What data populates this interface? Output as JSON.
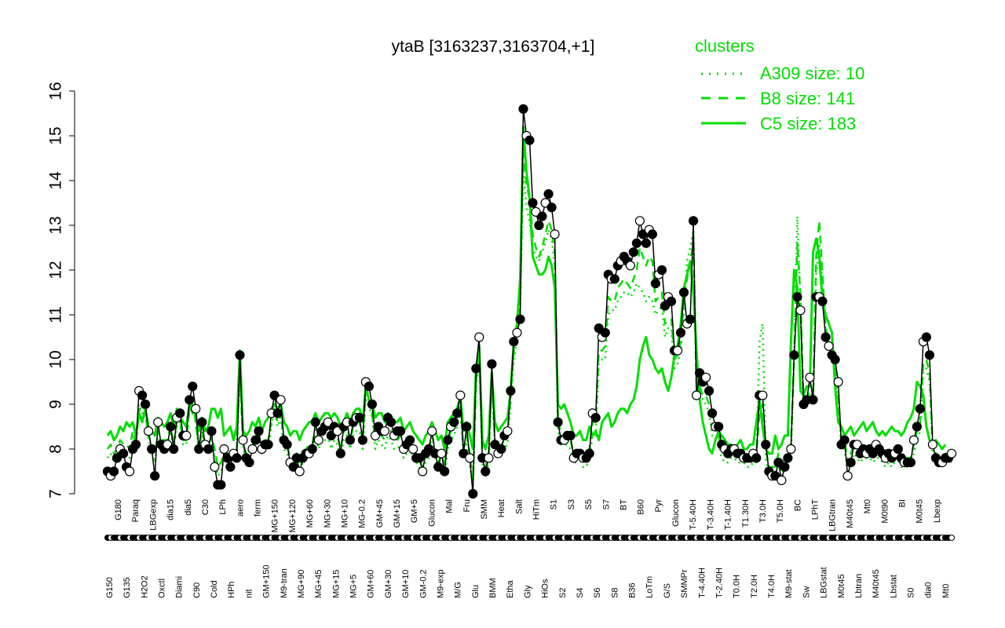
{
  "chart_data": {
    "type": "line",
    "title": "ytaB [3163237,3163704,+1]",
    "xlabel": "",
    "ylabel": "",
    "ylim": [
      7,
      16
    ],
    "yticks": [
      7,
      8,
      9,
      10,
      11,
      12,
      13,
      14,
      15,
      16
    ],
    "grid": false,
    "legend": {
      "title": "clusters",
      "placement": "top-right",
      "color": "#00dd00",
      "entries": [
        {
          "label": "A309 size: 10",
          "style": "dotted"
        },
        {
          "label": "B8 size: 141",
          "style": "dashed"
        },
        {
          "label": "C5 size: 183",
          "style": "solid"
        }
      ]
    },
    "x_tick_labels": [
      "G150",
      "G180",
      "G135",
      "Paraq",
      "H2O2",
      "LBGexp",
      "Oxctl",
      "dia15",
      "Diami",
      "dia5",
      "C90",
      "C30",
      "Cold",
      "LPh",
      "HPh",
      "aero",
      "nit",
      "ferm",
      "GM+150",
      "MG+150",
      "M9-tran",
      "MG+120",
      "MG+90",
      "MG+60",
      "MG+45",
      "MG+30",
      "MG+15",
      "MG+10",
      "MG+5",
      "MG-0.2",
      "GM+60",
      "GM+45",
      "GM+30",
      "GM+15",
      "GM+10",
      "GM+5",
      "GM-0.2",
      "Glucon",
      "M9-exp",
      "Mal",
      "M/G",
      "Fru",
      "Glu",
      "SMM",
      "BMM",
      "Heat",
      "Etha",
      "Salt",
      "Gly",
      "HiTm",
      "HiOs",
      "S1",
      "S2",
      "S3",
      "S4",
      "S5",
      "S6",
      "S7",
      "S8",
      "BT",
      "B36",
      "B60",
      "LoTm",
      "Pyr",
      "G/S",
      "Glucon",
      "SMMPr",
      "T-5.40H",
      "T-4.40H",
      "T-3.40H",
      "T-2.40H",
      "T-1.40H",
      "T0.0H",
      "T1.30H",
      "T2.0H",
      "T3.0H",
      "T4.0H",
      "T5.0H",
      "M9-stat",
      "BC",
      "Sw",
      "LPhT",
      "LBGstat",
      "LBGtran",
      "M0t45",
      "M40t45",
      "Lbtran",
      "Mt0",
      "M40t45",
      "M0t90",
      "Lbstat",
      "BI",
      "S0",
      "M0t45",
      "dia0",
      "Lbexp",
      "Mt0"
    ],
    "series": [
      {
        "name": "",
        "color": "#000000",
        "values": [
          7.5,
          7.4,
          7.5,
          7.8,
          8.0,
          7.9,
          7.6,
          7.5,
          8.0,
          8.1,
          9.3,
          9.2,
          9.0,
          8.4,
          8.0,
          7.4,
          8.6,
          8.1,
          8.0,
          8.1,
          8.5,
          8.0,
          8.7,
          8.8,
          8.3,
          8.3,
          9.1,
          9.4,
          8.9,
          8.0,
          8.6,
          8.1,
          8.0,
          8.4,
          7.6,
          7.2,
          7.2,
          8.0,
          7.8,
          7.6,
          7.9,
          7.8,
          10.1,
          8.2,
          7.8,
          7.7,
          8.0,
          8.2,
          8.4,
          8.0,
          8.1,
          8.1,
          8.8,
          9.2,
          8.8,
          9.1,
          8.2,
          8.1,
          7.7,
          7.6,
          7.8,
          7.5,
          7.8,
          7.9,
          7.9,
          8.0,
          8.6,
          8.2,
          8.4,
          8.5,
          8.6,
          8.3,
          8.5,
          8.4,
          7.9,
          8.5,
          8.6,
          8.2,
          8.6,
          8.7,
          8.7,
          8.2,
          9.5,
          9.4,
          9.0,
          8.3,
          8.5,
          8.4,
          8.4,
          8.7,
          8.6,
          8.3,
          8.4,
          8.4,
          8.0,
          8.1,
          8.2,
          8.0,
          7.8,
          7.8,
          7.5,
          7.9,
          8.0,
          8.4,
          7.9,
          7.6,
          7.9,
          7.5,
          8.2,
          8.5,
          8.6,
          8.8,
          9.2,
          7.9,
          8.5,
          7.8,
          7.0,
          9.8,
          10.5,
          7.8,
          7.5,
          7.8,
          9.9,
          8.1,
          7.9,
          8.0,
          8.3,
          8.4,
          9.3,
          10.4,
          10.6,
          10.9,
          15.6,
          15.0,
          14.9,
          13.5,
          13.3,
          13.0,
          13.2,
          13.5,
          13.7,
          13.4,
          12.8,
          8.6,
          8.2,
          8.2,
          8.3,
          8.3,
          7.8,
          7.9,
          7.9,
          7.8,
          7.8,
          7.9,
          8.8,
          8.7,
          10.7,
          10.5,
          10.6,
          11.9,
          11.8,
          11.8,
          12.1,
          12.2,
          12.3,
          12.2,
          12.1,
          12.4,
          12.6,
          13.1,
          12.8,
          12.6,
          12.9,
          12.8,
          11.7,
          11.9,
          12.0,
          11.2,
          11.4,
          11.3,
          10.2,
          10.2,
          10.6,
          11.5,
          10.8,
          10.9,
          13.1,
          9.2,
          9.7,
          9.5,
          9.6,
          9.3,
          8.8,
          8.5,
          8.5,
          8.1,
          8.0,
          7.9,
          8.0,
          8.0,
          7.9,
          7.9,
          7.8,
          7.8,
          7.8,
          7.9,
          7.8,
          9.2,
          9.2,
          8.1,
          7.5,
          7.4,
          7.4,
          7.7,
          7.3,
          7.6,
          7.8,
          8.0,
          10.1,
          11.4,
          11.1,
          9.0,
          9.1,
          9.6,
          9.1,
          11.4,
          11.4,
          11.3,
          10.5,
          10.3,
          10.1,
          10.0,
          9.5,
          8.1,
          8.2,
          7.4,
          7.7,
          8.1,
          8.1,
          7.9,
          8.0,
          7.9,
          8.0,
          7.9,
          8.1,
          8.0,
          7.9,
          7.8,
          7.9,
          7.8,
          7.9,
          8.0,
          7.8,
          7.7,
          7.7,
          7.7,
          8.2,
          8.5,
          8.9,
          10.4,
          10.5,
          10.1,
          8.1,
          7.8,
          7.7,
          7.7,
          7.8,
          7.8,
          7.9
        ]
      },
      {
        "name": "C5 size: 183",
        "color": "#00dd00",
        "values": [
          8.3,
          8.4,
          8.2,
          8.3,
          8.5,
          8.4,
          8.6,
          8.5,
          8.6,
          8.3,
          8.8,
          8.6,
          8.9,
          8.5,
          8.4,
          8.3,
          8.7,
          8.6,
          8.5,
          8.6,
          8.8,
          8.5,
          8.9,
          8.7,
          8.6,
          8.5,
          9.0,
          8.8,
          8.8,
          8.4,
          8.7,
          8.4,
          8.5,
          8.9,
          8.9,
          8.7,
          8.9,
          8.3,
          8.4,
          8.5,
          8.2,
          8.5,
          10.2,
          8.4,
          8.3,
          8.4,
          8.6,
          8.5,
          8.7,
          8.4,
          8.6,
          8.7,
          8.9,
          9.0,
          8.9,
          9.0,
          8.6,
          8.5,
          8.3,
          8.4,
          8.4,
          8.2,
          8.4,
          8.5,
          8.6,
          8.6,
          8.8,
          8.6,
          8.7,
          8.8,
          8.8,
          8.7,
          8.8,
          8.7,
          8.5,
          8.6,
          8.8,
          8.6,
          8.8,
          8.9,
          8.9,
          8.6,
          9.4,
          9.1,
          9.0,
          8.7,
          8.8,
          8.8,
          8.6,
          8.8,
          8.7,
          8.6,
          8.6,
          8.7,
          8.4,
          8.5,
          8.6,
          8.4,
          8.3,
          8.2,
          8.1,
          8.3,
          8.4,
          8.6,
          8.4,
          8.2,
          8.3,
          8.0,
          8.6,
          8.7,
          8.8,
          8.9,
          9.2,
          8.4,
          8.6,
          8.3,
          8.0,
          9.8,
          10.3,
          8.2,
          8.0,
          8.3,
          9.7,
          8.6,
          8.4,
          8.5,
          8.6,
          8.7,
          9.3,
          10.4,
          10.8,
          11.8,
          15.2,
          14.2,
          13.6,
          12.3,
          12.1,
          11.9,
          11.9,
          12.0,
          12.3,
          12.1,
          11.6,
          9.0,
          8.9,
          9.0,
          8.8,
          8.6,
          8.3,
          8.3,
          8.4,
          8.2,
          8.2,
          8.5,
          8.3,
          8.4,
          8.2,
          8.6,
          8.7,
          8.8,
          8.5,
          8.6,
          8.8,
          8.9,
          8.9,
          8.8,
          9.0,
          9.1,
          9.4,
          10.0,
          10.3,
          10.5,
          10.1,
          10.0,
          9.8,
          9.7,
          9.8,
          9.5,
          9.3,
          9.6,
          10.1,
          10.3,
          10.8,
          11.6,
          11.9,
          12.2,
          11.5,
          10.2,
          9.1,
          8.6,
          8.3,
          8.0,
          7.9,
          8.2,
          8.4,
          8.3,
          8.2,
          8.1,
          8.1,
          8.0,
          8.1,
          8.2,
          8.0,
          8.0,
          8.1,
          8.1,
          8.6,
          9.1,
          8.5,
          8.0,
          7.9,
          7.9,
          8.3,
          8.0,
          8.1,
          8.3,
          8.3,
          10.4,
          12.0,
          11.6,
          9.3,
          9.2,
          9.4,
          9.4,
          12.4,
          12.7,
          12.3,
          11.3,
          11.0,
          10.8,
          10.6,
          9.4,
          8.6,
          8.5,
          8.3,
          8.4,
          8.5,
          8.3,
          8.4,
          8.5,
          8.6,
          8.4,
          8.5,
          8.6,
          8.4,
          8.3,
          8.4,
          8.3,
          8.4,
          8.5,
          8.4,
          8.4,
          8.3,
          8.4,
          8.6,
          8.7,
          8.9,
          9.5,
          9.4,
          9.2,
          8.5,
          8.2,
          8.1,
          8.2,
          8.1,
          8.0,
          8.1
        ]
      },
      {
        "name": "B8 size: 141",
        "color": "#00dd00",
        "values": [
          8.0,
          8.1,
          7.9,
          8.0,
          8.2,
          8.1,
          8.1,
          8.0,
          8.4,
          8.1,
          8.9,
          8.7,
          8.8,
          8.3,
          8.1,
          7.9,
          8.4,
          8.2,
          8.2,
          8.2,
          8.5,
          8.1,
          8.6,
          8.6,
          8.2,
          8.2,
          8.9,
          9.0,
          8.6,
          8.0,
          8.4,
          8.1,
          8.0,
          8.3,
          8.0,
          7.6,
          7.7,
          7.9,
          7.9,
          7.9,
          8.0,
          8.0,
          9.8,
          8.1,
          7.9,
          7.9,
          8.1,
          8.2,
          8.3,
          8.0,
          8.2,
          8.2,
          8.6,
          8.9,
          8.6,
          8.8,
          8.2,
          8.1,
          7.8,
          7.8,
          7.9,
          7.7,
          7.9,
          8.0,
          8.1,
          8.1,
          8.5,
          8.2,
          8.3,
          8.4,
          8.5,
          8.2,
          8.4,
          8.3,
          8.0,
          8.4,
          8.5,
          8.2,
          8.5,
          8.6,
          8.6,
          8.2,
          9.3,
          9.1,
          8.8,
          8.2,
          8.4,
          8.3,
          8.2,
          8.5,
          8.4,
          8.2,
          8.2,
          8.3,
          8.0,
          8.1,
          8.2,
          8.0,
          7.9,
          7.8,
          7.6,
          7.9,
          8.0,
          8.3,
          8.0,
          7.7,
          7.9,
          7.6,
          8.2,
          8.4,
          8.5,
          8.6,
          9.0,
          8.0,
          8.3,
          7.9,
          7.3,
          9.5,
          10.2,
          7.9,
          7.6,
          7.9,
          9.7,
          8.1,
          8.0,
          8.1,
          8.2,
          8.3,
          9.2,
          10.2,
          10.7,
          11.4,
          14.6,
          13.9,
          13.6,
          12.8,
          12.5,
          12.3,
          12.5,
          12.8,
          13.1,
          12.9,
          12.4,
          8.7,
          8.3,
          8.3,
          8.3,
          8.2,
          7.9,
          7.9,
          8.0,
          7.8,
          7.8,
          8.0,
          8.6,
          8.6,
          10.2,
          10.2,
          10.3,
          11.4,
          11.3,
          11.3,
          11.6,
          11.7,
          11.8,
          11.7,
          11.6,
          11.8,
          12.0,
          12.5,
          12.3,
          12.1,
          12.3,
          12.2,
          11.3,
          11.4,
          11.5,
          10.8,
          10.9,
          10.9,
          10.0,
          10.1,
          10.4,
          11.3,
          11.8,
          12.2,
          12.6,
          9.4,
          9.4,
          9.2,
          9.2,
          9.0,
          8.5,
          8.4,
          8.3,
          8.0,
          7.9,
          7.9,
          8.0,
          8.0,
          7.9,
          7.9,
          7.9,
          7.8,
          7.8,
          7.9,
          7.9,
          8.8,
          9.0,
          8.0,
          7.6,
          7.6,
          7.6,
          7.9,
          7.6,
          7.8,
          7.9,
          8.1,
          10.1,
          12.6,
          11.4,
          9.0,
          9.1,
          9.3,
          9.1,
          12.3,
          13.1,
          11.9,
          10.7,
          10.4,
          10.2,
          10.0,
          9.2,
          8.2,
          8.2,
          7.7,
          7.9,
          8.1,
          8.0,
          7.9,
          8.0,
          8.0,
          8.0,
          7.9,
          8.0,
          8.0,
          7.9,
          7.8,
          7.9,
          7.8,
          7.9,
          8.0,
          7.8,
          7.8,
          7.8,
          7.8,
          8.1,
          8.4,
          8.6,
          9.9,
          10.0,
          9.7,
          8.1,
          7.9,
          7.8,
          7.8,
          7.9,
          7.9,
          7.9
        ]
      },
      {
        "name": "A309 size: 10",
        "color": "#00dd00",
        "values": [
          7.8,
          7.9,
          7.7,
          7.9,
          8.1,
          8.0,
          7.9,
          7.8,
          8.2,
          8.0,
          9.0,
          8.8,
          8.8,
          8.2,
          8.0,
          7.7,
          8.4,
          8.1,
          8.1,
          8.1,
          8.4,
          8.0,
          8.5,
          8.6,
          8.1,
          8.1,
          8.9,
          9.1,
          8.6,
          7.9,
          8.3,
          8.0,
          7.9,
          8.2,
          7.8,
          7.4,
          7.5,
          7.8,
          7.8,
          7.7,
          7.9,
          7.8,
          9.8,
          8.0,
          7.8,
          7.8,
          8.0,
          8.1,
          8.2,
          7.9,
          8.0,
          8.0,
          8.5,
          8.9,
          8.5,
          8.7,
          8.0,
          7.9,
          7.6,
          7.6,
          7.7,
          7.5,
          7.7,
          7.8,
          7.9,
          7.9,
          8.3,
          8.0,
          8.2,
          8.2,
          8.3,
          8.0,
          8.2,
          8.1,
          7.8,
          8.2,
          8.3,
          8.0,
          8.3,
          8.4,
          8.4,
          8.0,
          9.1,
          9.0,
          8.7,
          8.0,
          8.2,
          8.1,
          8.0,
          8.3,
          8.2,
          8.0,
          8.0,
          8.1,
          7.8,
          7.9,
          8.0,
          7.8,
          7.7,
          7.6,
          7.4,
          7.7,
          7.8,
          8.1,
          7.8,
          7.5,
          7.7,
          7.4,
          8.0,
          8.2,
          8.3,
          8.5,
          8.9,
          7.8,
          8.1,
          7.7,
          7.1,
          9.4,
          10.0,
          7.7,
          7.4,
          7.7,
          9.5,
          7.9,
          7.8,
          7.9,
          8.0,
          8.1,
          9.0,
          10.0,
          10.5,
          11.2,
          14.2,
          13.4,
          13.1,
          12.5,
          12.3,
          12.2,
          12.4,
          12.6,
          12.9,
          12.7,
          12.1,
          8.4,
          8.1,
          8.1,
          8.1,
          8.0,
          7.7,
          7.7,
          7.8,
          7.6,
          7.6,
          7.8,
          8.3,
          8.3,
          9.9,
          10.0,
          10.0,
          11.0,
          11.1,
          11.1,
          11.3,
          11.4,
          11.5,
          11.5,
          11.4,
          11.5,
          11.7,
          11.6,
          11.5,
          11.3,
          11.4,
          11.3,
          11.0,
          11.1,
          11.2,
          10.5,
          10.7,
          10.7,
          9.8,
          9.9,
          10.2,
          11.0,
          12.2,
          12.5,
          12.9,
          9.3,
          9.3,
          9.1,
          9.0,
          8.8,
          8.3,
          8.2,
          8.1,
          7.8,
          7.7,
          7.7,
          7.8,
          7.8,
          7.7,
          7.7,
          7.7,
          7.6,
          7.6,
          7.7,
          7.7,
          10.4,
          10.8,
          7.8,
          7.4,
          7.4,
          7.4,
          7.7,
          7.4,
          7.6,
          7.7,
          7.9,
          10.0,
          13.2,
          11.3,
          8.9,
          9.0,
          9.2,
          9.0,
          11.9,
          12.6,
          11.7,
          10.6,
          10.3,
          10.1,
          9.9,
          9.0,
          8.0,
          8.0,
          7.5,
          7.7,
          7.9,
          7.8,
          7.7,
          7.8,
          7.8,
          7.8,
          7.7,
          7.8,
          7.8,
          7.7,
          7.6,
          7.7,
          7.6,
          7.7,
          7.8,
          7.6,
          7.6,
          7.6,
          7.6,
          7.9,
          8.2,
          8.4,
          9.7,
          9.8,
          9.5,
          7.9,
          7.7,
          7.6,
          7.6,
          7.7,
          7.7,
          7.7
        ]
      }
    ]
  }
}
